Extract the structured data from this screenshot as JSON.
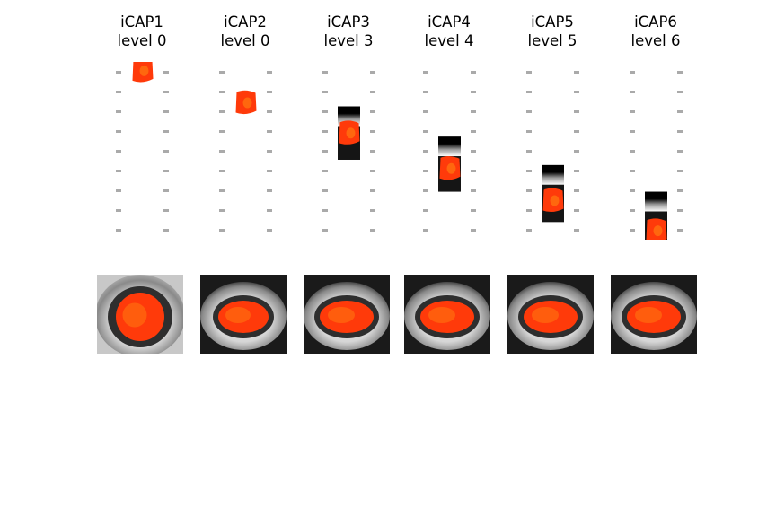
{
  "panels": [
    {
      "name": "iCAP1",
      "level": "level 0",
      "sag_center": 0.05,
      "sag_window": null
    },
    {
      "name": "iCAP2",
      "level": "level 0",
      "sag_center": 0.23,
      "sag_window": null
    },
    {
      "name": "iCAP3",
      "level": "level 3",
      "sag_center": 0.4,
      "sag_window": [
        0.25,
        0.55
      ]
    },
    {
      "name": "iCAP4",
      "level": "level 4",
      "sag_center": 0.6,
      "sag_window": [
        0.42,
        0.73
      ]
    },
    {
      "name": "iCAP5",
      "level": "level 5",
      "sag_center": 0.78,
      "sag_window": [
        0.58,
        0.9
      ]
    },
    {
      "name": "iCAP6",
      "level": "level 6",
      "sag_center": 0.95,
      "sag_window": [
        0.73,
        1.0
      ]
    }
  ],
  "colors": {
    "activation": "#ff3a0a",
    "activation_hot": "#ff7a10",
    "cord": "#3c3c3c",
    "csf": "#dcdcdc",
    "background": "#111111"
  }
}
